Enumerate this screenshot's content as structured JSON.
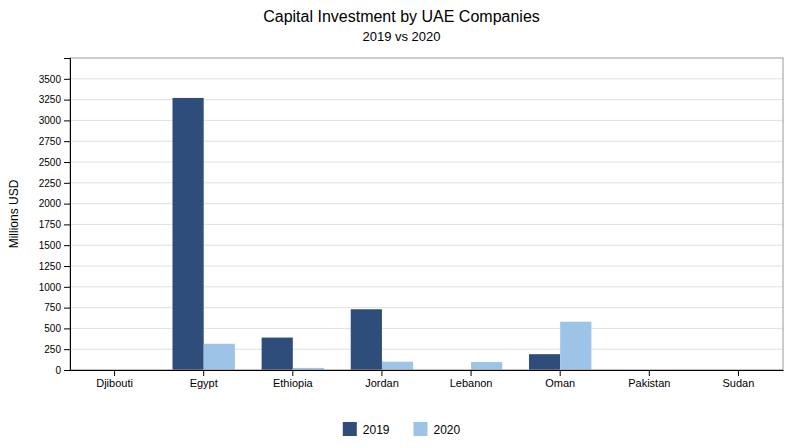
{
  "chart_data": {
    "type": "bar",
    "title": "Capital Investment by UAE Companies",
    "subtitle": "2019 vs 2020",
    "ylabel": "Millions USD",
    "categories": [
      "Djibouti",
      "Egypt",
      "Ethiopia",
      "Jordan",
      "Lebanon",
      "Oman",
      "Pakistan",
      "Sudan"
    ],
    "series": [
      {
        "name": "2019",
        "color": "#2E4D7B",
        "values": [
          0,
          3270,
          390,
          730,
          0,
          190,
          0,
          0
        ]
      },
      {
        "name": "2020",
        "color": "#9DC3E6",
        "values": [
          0,
          315,
          25,
          100,
          95,
          580,
          0,
          0
        ]
      }
    ],
    "ylim": [
      0,
      3750
    ],
    "yticks": [
      0,
      250,
      500,
      750,
      1000,
      1250,
      1500,
      1750,
      2000,
      2250,
      2500,
      2750,
      3000,
      3250,
      3500
    ],
    "grid": true,
    "legend": "bottom"
  }
}
